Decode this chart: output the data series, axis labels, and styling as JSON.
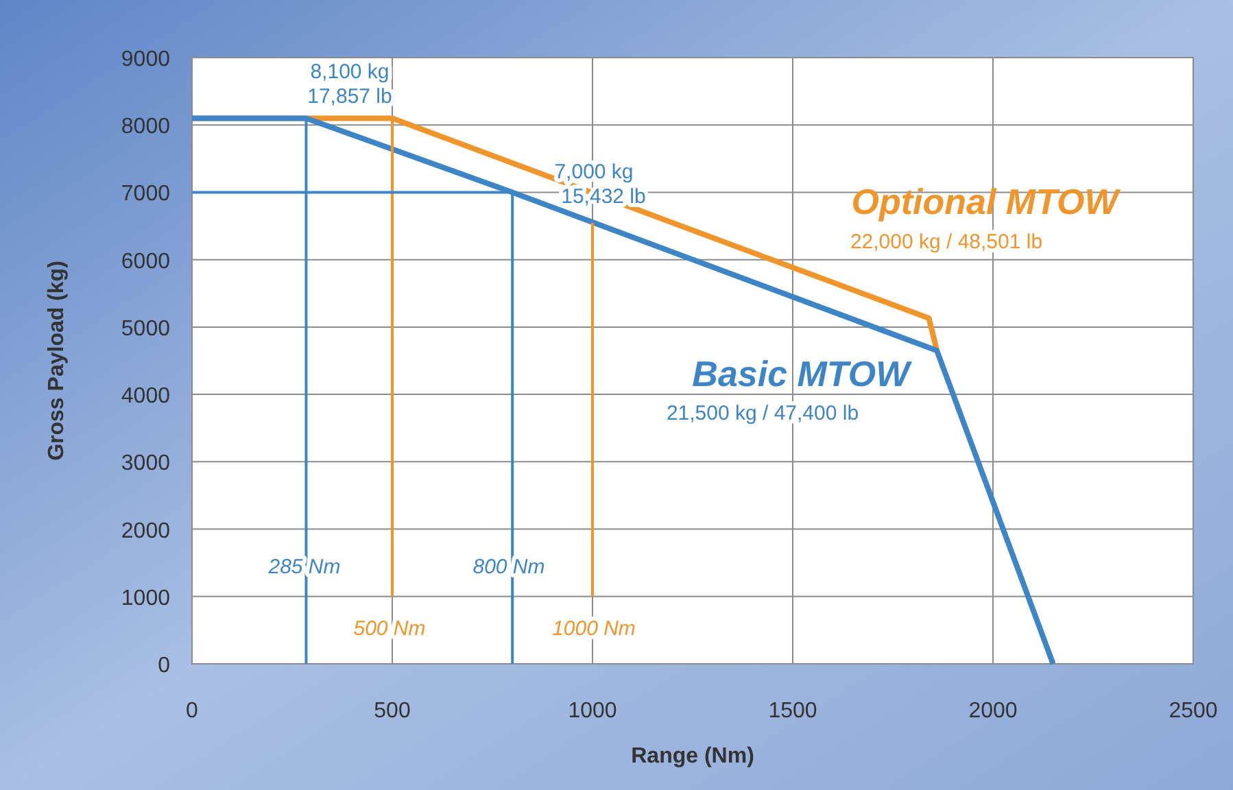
{
  "chart_data": {
    "type": "line",
    "xlabel": "Range (Nm)",
    "ylabel": "Gross Payload (kg)",
    "xlim": [
      0,
      2500
    ],
    "ylim": [
      0,
      9000
    ],
    "xticks": [
      0,
      500,
      1000,
      1500,
      2000,
      2500
    ],
    "yticks": [
      0,
      1000,
      2000,
      3000,
      4000,
      5000,
      6000,
      7000,
      8000,
      9000
    ],
    "grid": true,
    "line_style": "solid",
    "marker": "none",
    "series": [
      {
        "name": "Optional MTOW",
        "color": "#f0952b",
        "x": [
          0,
          500,
          1840,
          1860
        ],
        "values": [
          8100,
          8100,
          5130,
          4650
        ]
      },
      {
        "name": "Basic MTOW",
        "color": "#3d85c6",
        "x": [
          0,
          285,
          800,
          1860,
          2150
        ],
        "values": [
          8100,
          8100,
          7000,
          4650,
          0
        ]
      },
      {
        "color": "#3d85c6",
        "x": [
          285,
          285
        ],
        "values": [
          0,
          8100
        ]
      },
      {
        "color": "#f0952b",
        "x": [
          500,
          500
        ],
        "values": [
          1000,
          8100
        ]
      },
      {
        "color": "#3d85c6",
        "x": [
          800,
          800
        ],
        "values": [
          0,
          7000
        ]
      },
      {
        "color": "#f0952b",
        "x": [
          1000,
          1000
        ],
        "values": [
          1000,
          6550
        ]
      },
      {
        "color": "#3d85c6",
        "x": [
          0,
          800
        ],
        "values": [
          7000,
          7000
        ]
      }
    ],
    "annotations": [
      "8,100 kg",
      "17,857 lb",
      "7,000 kg",
      "15,432 lb",
      "22,000 kg / 48,501 lb",
      "21,500 kg / 47,400 lb",
      "285 Nm",
      "500 Nm",
      "800 Nm",
      "1000 Nm"
    ]
  }
}
